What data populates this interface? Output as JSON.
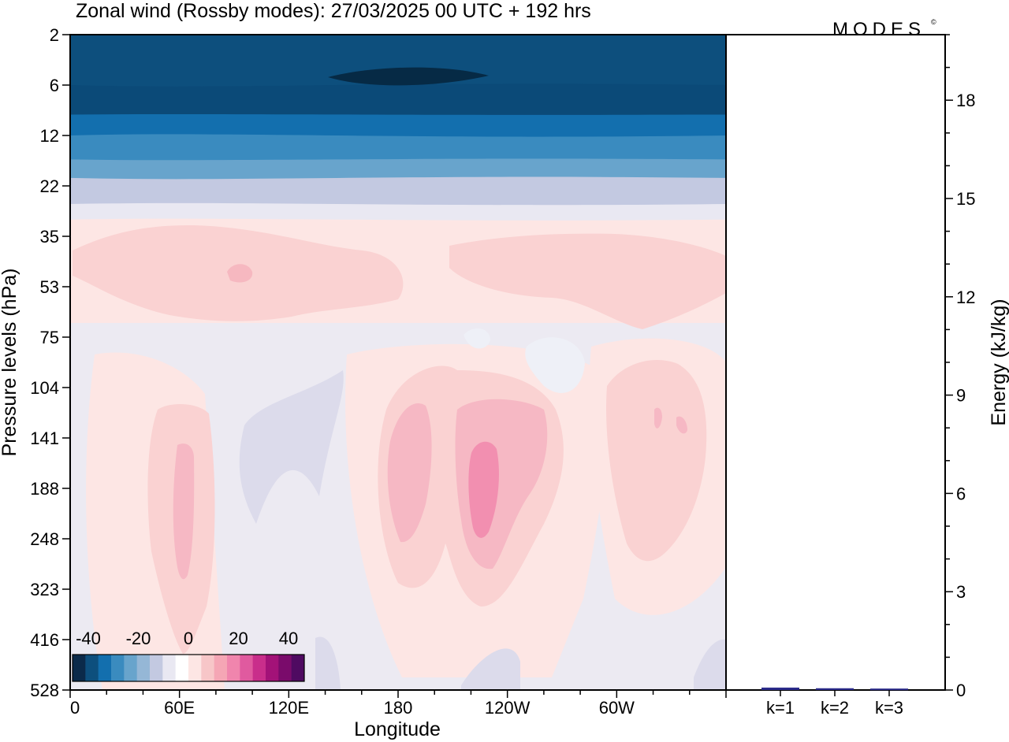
{
  "chart_data": {
    "type": "heatmap",
    "title": "Zonal wind (Rossby modes):  27/03/2025  00 UTC  + 192 hrs",
    "logo": "MODES",
    "xlabel": "Longitude",
    "ylabel": "Pressure levels (hPa)",
    "xticks": [
      "0",
      "60E",
      "120E",
      "180",
      "120W",
      "60W"
    ],
    "xtick_lon": [
      0,
      60,
      120,
      180,
      240,
      300
    ],
    "xlim": [
      0,
      360
    ],
    "pressure_levels": [
      "2",
      "6",
      "12",
      "22",
      "35",
      "53",
      "75",
      "104",
      "141",
      "188",
      "248",
      "323",
      "416",
      "528"
    ],
    "colorbar": {
      "ticks": [
        "-40",
        "-20",
        "0",
        "20",
        "40"
      ],
      "colors": [
        "#0b2a4a",
        "#0d4f7d",
        "#136fae",
        "#3a8bbf",
        "#68a4cc",
        "#95b7d6",
        "#c3c9e1",
        "#e9e8f2",
        "#ffffff",
        "#fde6e4",
        "#f7c6c8",
        "#f5a6b5",
        "#f085ad",
        "#e05a9f",
        "#c92e8b",
        "#a31278",
        "#7a0b6b",
        "#4f0a61"
      ]
    },
    "bands": [
      {
        "level": 2,
        "color": "#0d4f7d"
      },
      {
        "level": 6,
        "color": "#0b4a78"
      },
      {
        "level": 9,
        "color": "#136fae"
      },
      {
        "level": 12,
        "color": "#3a8bbf"
      },
      {
        "level": 16,
        "color": "#68a4cc"
      },
      {
        "level": 20,
        "color": "#c3c9e1"
      },
      {
        "level": 26,
        "color": "#e9e8f2"
      },
      {
        "level": 30,
        "color": "#fde6e4"
      },
      {
        "level": 528,
        "color": "#fde6e4"
      }
    ],
    "energy_axis": {
      "label": "Energy (kJ/kg)",
      "ticks": [
        "0",
        "3",
        "6",
        "9",
        "12",
        "15",
        "18"
      ],
      "ylim": [
        0,
        20
      ],
      "categories": [
        "k=1",
        "k=2",
        "k=3"
      ],
      "values": [
        0.05,
        0.03,
        0.02
      ],
      "bar_colors": [
        "#2b2b8a",
        "#2b2b8a",
        "#2b2b8a"
      ]
    }
  }
}
